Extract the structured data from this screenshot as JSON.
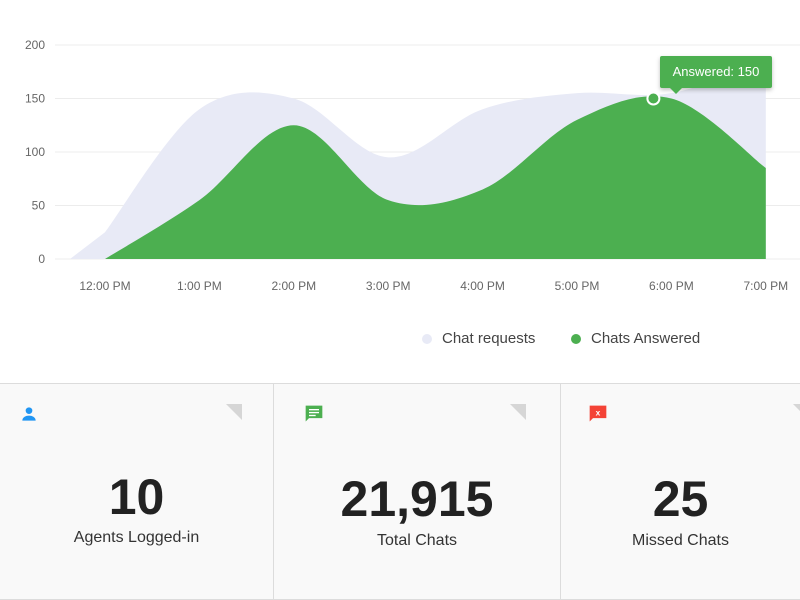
{
  "chart_data": {
    "type": "area",
    "x": [
      "12:00 PM",
      "1:00 PM",
      "2:00 PM",
      "3:00 PM",
      "4:00 PM",
      "5:00 PM",
      "6:00 PM",
      "7:00 PM"
    ],
    "ylim": [
      0,
      200
    ],
    "yticks": [
      0,
      50,
      100,
      150,
      200
    ],
    "grid": true,
    "series": [
      {
        "name": "Chat requests",
        "color": "#e8eaf6",
        "values": [
          25,
          140,
          150,
          95,
          140,
          155,
          155,
          185
        ]
      },
      {
        "name": "Chats Answered",
        "color": "#4caf50",
        "values": [
          0,
          55,
          125,
          55,
          65,
          130,
          150,
          85
        ]
      }
    ],
    "tooltip": {
      "label": "Answered: 150",
      "series": "Chats Answered",
      "x": "6:00 PM",
      "value": 150
    }
  },
  "legend": {
    "requests": {
      "label": "Chat requests",
      "color": "#e8eaf6"
    },
    "answered": {
      "label": "Chats Answered",
      "color": "#4caf50"
    }
  },
  "stats": [
    {
      "value": "10",
      "label": "Agents Logged-in",
      "icon": "person-icon",
      "icon_color": "#2196f3"
    },
    {
      "value": "21,915",
      "label": "Total Chats",
      "icon": "chat-icon",
      "icon_color": "#4caf50"
    },
    {
      "value": "25",
      "label": "Missed Chats",
      "icon": "missed-chat-icon",
      "icon_color": "#f44336",
      "icon_text": "x"
    }
  ]
}
